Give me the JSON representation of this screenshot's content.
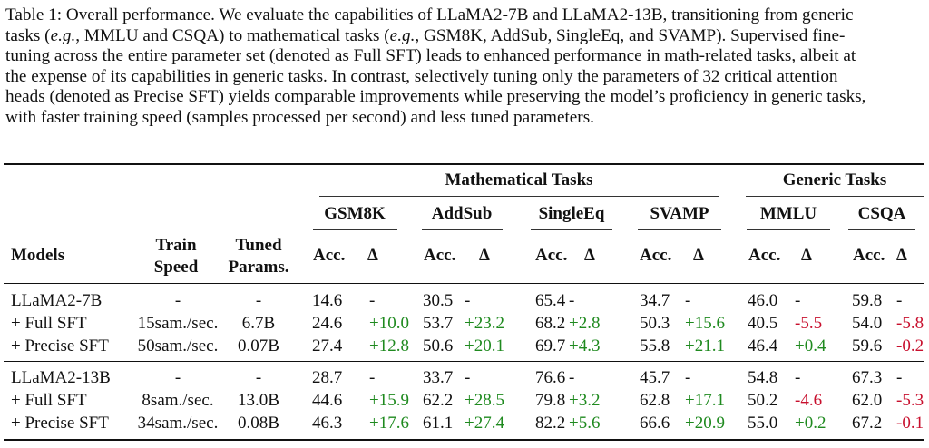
{
  "caption": {
    "line1": "Table 1: Overall performance. We evaluate the capabilities of LLaMA2-7B and LLaMA2-13B, transitioning from generic",
    "line2a": "tasks (",
    "eg1": "e.g.",
    "line2b": ", MMLU and CSQA) to mathematical tasks (",
    "eg2": "e.g.",
    "line2c": ", GSM8K, AddSub, SingleEq, and SVAMP). Supervised fine-",
    "line3": "tuning across the entire parameter set (denoted as Full SFT) leads to enhanced performance in math-related tasks, albeit at",
    "line4": "the expense of its capabilities in generic tasks. In contrast, selectively tuning only the parameters of 32 critical attention",
    "line5": "heads (denoted as Precise SFT) yields comparable improvements while preserving the model’s proficiency in generic tasks,",
    "line6": "with faster training speed (samples processed per second) and less tuned parameters."
  },
  "header": {
    "math_group": "Mathematical Tasks",
    "generic_group": "Generic Tasks",
    "tasks": [
      "GSM8K",
      "AddSub",
      "SingleEq",
      "SVAMP",
      "MMLU",
      "CSQA"
    ],
    "models": "Models",
    "train1": "Train",
    "train2": "Speed",
    "tuned1": "Tuned",
    "tuned2": "Params.",
    "acc": "Acc.",
    "delta": "Δ"
  },
  "rows": [
    {
      "model": "LLaMA2-7B",
      "speed": "-",
      "params": "-",
      "acc": [
        "14.6",
        "30.5",
        "65.4",
        "34.7",
        "46.0",
        "59.8"
      ],
      "delta": [
        "-",
        "-",
        "-",
        "-",
        "-",
        "-"
      ]
    },
    {
      "model": "+ Full SFT",
      "speed": "15sam./sec.",
      "params": "6.7B",
      "acc": [
        "24.6",
        "53.7",
        "68.2",
        "50.3",
        "40.5",
        "54.0"
      ],
      "delta": [
        "+10.0",
        "+23.2",
        "+2.8",
        "+15.6",
        "-5.5",
        "-5.8"
      ]
    },
    {
      "model": "+ Precise SFT",
      "speed": "50sam./sec.",
      "params": "0.07B",
      "acc": [
        "27.4",
        "50.6",
        "69.7",
        "55.8",
        "46.4",
        "59.6"
      ],
      "delta": [
        "+12.8",
        "+20.1",
        "+4.3",
        "+21.1",
        "+0.4",
        "-0.2"
      ]
    },
    {
      "model": "LLaMA2-13B",
      "speed": "-",
      "params": "-",
      "acc": [
        "28.7",
        "33.7",
        "76.6",
        "45.7",
        "54.8",
        "67.3"
      ],
      "delta": [
        "-",
        "-",
        "-",
        "-",
        "-",
        "-"
      ]
    },
    {
      "model": "+ Full SFT",
      "speed": "8sam./sec.",
      "params": "13.0B",
      "acc": [
        "44.6",
        "62.2",
        "79.8",
        "62.8",
        "50.2",
        "62.0"
      ],
      "delta": [
        "+15.9",
        "+28.5",
        "+3.2",
        "+17.1",
        "-4.6",
        "-5.3"
      ]
    },
    {
      "model": "+ Precise SFT",
      "speed": "34sam./sec.",
      "params": "0.08B",
      "acc": [
        "46.3",
        "61.1",
        "82.2",
        "66.6",
        "55.0",
        "67.2"
      ],
      "delta": [
        "+17.6",
        "+27.4",
        "+5.6",
        "+20.9",
        "+0.2",
        "-0.1"
      ]
    }
  ],
  "colors": {
    "positive": "#1f8a1f",
    "negative": "#c8102e"
  }
}
